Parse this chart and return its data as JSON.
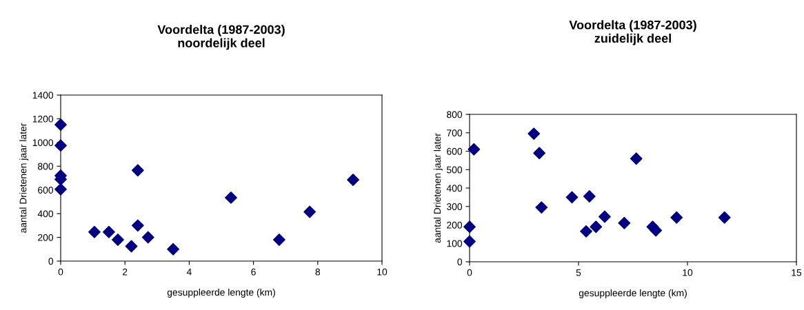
{
  "chart_data": [
    {
      "type": "scatter",
      "title": "Voordelta (1987-2003)\nnoordelijk deel",
      "xlabel": "gesuppleerde lengte (km)",
      "ylabel": "aantal Drietenen jaar later",
      "marker": "diamond",
      "grid": false,
      "series": [
        {
          "color": "#000080",
          "x": [
            0,
            0,
            0,
            0,
            0,
            1.05,
            1.5,
            1.78,
            2.2,
            2.4,
            2.4,
            2.72,
            3.5,
            5.3,
            6.8,
            7.75,
            9.1
          ],
          "values": [
            1150,
            975,
            720,
            690,
            605,
            245,
            245,
            180,
            125,
            765,
            300,
            200,
            100,
            535,
            180,
            415,
            685
          ]
        }
      ],
      "xlim": [
        0,
        10
      ],
      "xticks": [
        0,
        2,
        4,
        6,
        8,
        10
      ],
      "ylim": [
        0,
        1400
      ],
      "yticks": [
        0,
        200,
        400,
        600,
        800,
        1000,
        1200,
        1400
      ]
    },
    {
      "type": "scatter",
      "title": "Voordelta (1987-2003)\nzuidelijk deel",
      "xlabel": "gesuppleerde lengte (km)",
      "ylabel": "aantal Drietenen jaar later",
      "marker": "diamond",
      "grid": false,
      "series": [
        {
          "color": "#000080",
          "x": [
            0,
            0,
            0.2,
            2.95,
            3.2,
            3.3,
            4.7,
            5.5,
            5.35,
            5.8,
            6.2,
            7.1,
            7.65,
            8.4,
            8.55,
            9.5,
            11.7
          ],
          "values": [
            190,
            110,
            610,
            695,
            590,
            295,
            350,
            355,
            165,
            190,
            245,
            210,
            560,
            190,
            170,
            240,
            240
          ]
        }
      ],
      "xlim": [
        0,
        15
      ],
      "xticks": [
        0,
        5,
        10,
        15
      ],
      "ylim": [
        0,
        800
      ],
      "yticks": [
        0,
        100,
        200,
        300,
        400,
        500,
        600,
        700,
        800
      ]
    }
  ]
}
